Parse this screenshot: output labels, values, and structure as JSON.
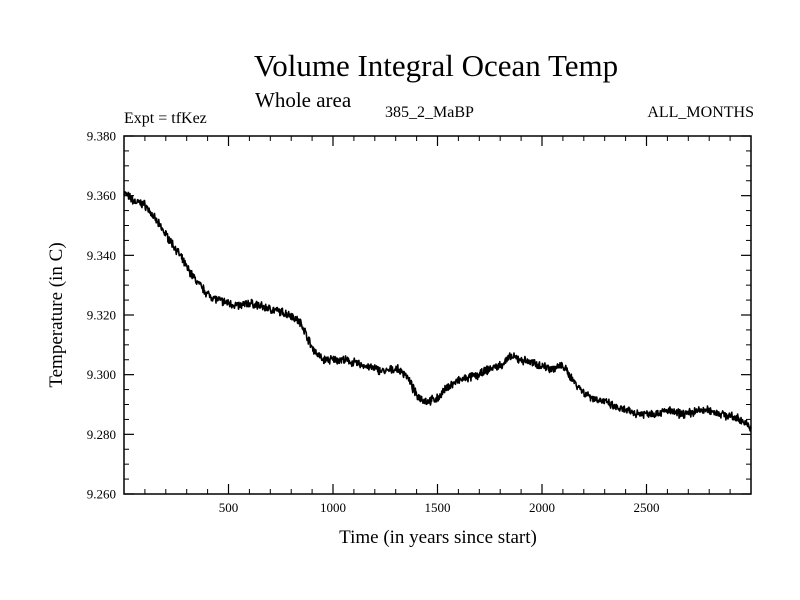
{
  "chart_data": {
    "type": "line",
    "title": "Volume Integral Ocean Temp",
    "subtitle": "Whole area",
    "left_label": "Expt = tfKez",
    "center_label": "385_2_MaBP",
    "right_label": "ALL_MONTHS",
    "xlabel": "Time (in years since start)",
    "ylabel": "Temperature (in C)",
    "xlim": [
      0,
      3000
    ],
    "ylim": [
      9.26,
      9.38
    ],
    "x_ticks": [
      500,
      1000,
      1500,
      2000,
      2500
    ],
    "y_ticks": [
      "9.260",
      "9.280",
      "9.300",
      "9.320",
      "9.340",
      "9.360",
      "9.380"
    ],
    "grid": false,
    "line_color": "#000000",
    "series": [
      {
        "x": [
          0,
          50,
          100,
          150,
          200,
          250,
          300,
          350,
          400,
          450,
          500,
          550,
          600,
          650,
          700,
          750,
          800,
          850,
          900,
          950,
          1000,
          1050,
          1100,
          1150,
          1200,
          1250,
          1300,
          1350,
          1400,
          1450,
          1500,
          1550,
          1600,
          1650,
          1700,
          1750,
          1800,
          1850,
          1900,
          1950,
          2000,
          2050,
          2100,
          2150,
          2200,
          2250,
          2300,
          2350,
          2400,
          2450,
          2500,
          2550,
          2600,
          2650,
          2700,
          2750,
          2800,
          2850,
          2900,
          2950,
          3000
        ],
        "values": [
          9.361,
          9.358,
          9.357,
          9.352,
          9.347,
          9.342,
          9.336,
          9.331,
          9.327,
          9.325,
          9.324,
          9.323,
          9.324,
          9.323,
          9.322,
          9.321,
          9.32,
          9.317,
          9.309,
          9.305,
          9.305,
          9.305,
          9.304,
          9.303,
          9.302,
          9.301,
          9.302,
          9.3,
          9.293,
          9.291,
          9.292,
          9.296,
          9.298,
          9.299,
          9.3,
          9.302,
          9.303,
          9.306,
          9.305,
          9.304,
          9.303,
          9.302,
          9.303,
          9.298,
          9.294,
          9.292,
          9.291,
          9.289,
          9.288,
          9.287,
          9.287,
          9.287,
          9.288,
          9.287,
          9.287,
          9.288,
          9.288,
          9.287,
          9.286,
          9.285,
          9.282
        ]
      }
    ]
  }
}
